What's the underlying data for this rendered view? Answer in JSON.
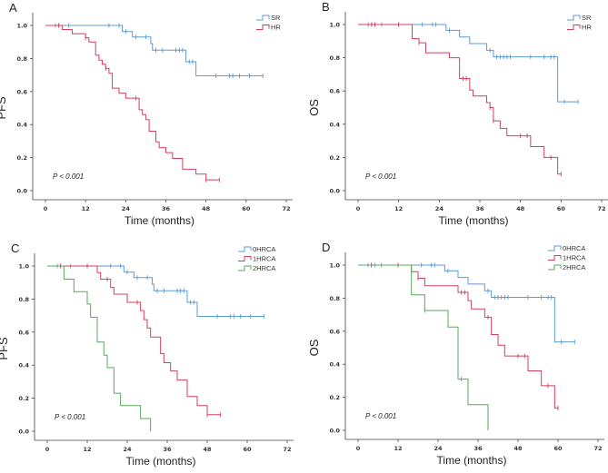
{
  "chart_data": [
    {
      "type": "line",
      "panel": "A",
      "ylabel": "PFS",
      "xlabel": "Time (months)",
      "pvalue": "P < 0.001",
      "xticks": [
        "0",
        "12",
        "24",
        "36",
        "48",
        "60",
        "72"
      ],
      "yticks": [
        "0.0",
        "0.2",
        "0.4",
        "0.6",
        "0.8",
        "1.0"
      ],
      "xlim": [
        0,
        72
      ],
      "ylim": [
        0,
        1
      ],
      "legend_position": "top-right",
      "series": [
        {
          "name": "SR",
          "color": "#5b9bd5",
          "steps": [
            [
              0,
              1
            ],
            [
              23,
              0.963
            ],
            [
              26,
              0.93
            ],
            [
              31.5,
              0.89
            ],
            [
              32,
              0.85
            ],
            [
              42,
              0.78
            ],
            [
              45,
              0.695
            ]
          ],
          "end": 65,
          "censors": [
            3,
            4,
            7,
            19,
            22,
            24,
            27,
            30,
            33,
            35,
            39,
            40,
            41,
            43,
            44,
            51,
            55,
            56,
            58,
            61,
            65
          ]
        },
        {
          "name": "HR",
          "color": "#d0405f",
          "steps": [
            [
              0,
              1
            ],
            [
              5,
              0.975
            ],
            [
              8,
              0.95
            ],
            [
              12,
              0.925
            ],
            [
              13,
              0.9
            ],
            [
              15,
              0.82
            ],
            [
              16,
              0.79
            ],
            [
              17,
              0.765
            ],
            [
              18,
              0.74
            ],
            [
              19,
              0.71
            ],
            [
              20,
              0.62
            ],
            [
              22,
              0.59
            ],
            [
              24,
              0.56
            ],
            [
              28,
              0.49
            ],
            [
              29,
              0.46
            ],
            [
              30,
              0.43
            ],
            [
              31,
              0.36
            ],
            [
              33,
              0.295
            ],
            [
              34,
              0.26
            ],
            [
              36,
              0.23
            ],
            [
              38,
              0.195
            ],
            [
              41,
              0.13
            ],
            [
              45,
              0.1
            ],
            [
              48,
              0.065
            ]
          ],
          "end": 52,
          "censors": [
            4,
            12,
            18,
            27,
            48,
            52
          ]
        }
      ]
    },
    {
      "type": "line",
      "panel": "B",
      "ylabel": "OS",
      "xlabel": "Time (months)",
      "pvalue": "P < 0.001",
      "xticks": [
        "0",
        "12",
        "24",
        "36",
        "48",
        "60",
        "72"
      ],
      "yticks": [
        "0.0",
        "0.2",
        "0.4",
        "0.6",
        "0.8",
        "1.0"
      ],
      "xlim": [
        0,
        72
      ],
      "ylim": [
        0,
        1
      ],
      "legend_position": "top-right",
      "series": [
        {
          "name": "SR",
          "color": "#5b9bd5",
          "steps": [
            [
              0,
              1
            ],
            [
              26,
              0.965
            ],
            [
              30,
              0.925
            ],
            [
              33,
              0.885
            ],
            [
              38,
              0.845
            ],
            [
              40,
              0.805
            ],
            [
              59,
              0.535
            ]
          ],
          "end": 65,
          "censors": [
            3,
            4,
            5,
            7,
            12,
            19,
            22,
            23,
            27,
            39,
            41,
            42,
            43,
            44,
            45,
            51,
            55,
            57,
            58,
            61,
            65
          ]
        },
        {
          "name": "HR",
          "color": "#d0405f",
          "steps": [
            [
              0,
              1
            ],
            [
              16,
              0.915
            ],
            [
              18,
              0.89
            ],
            [
              20,
              0.83
            ],
            [
              27,
              0.8
            ],
            [
              30,
              0.675
            ],
            [
              33,
              0.605
            ],
            [
              34,
              0.57
            ],
            [
              38,
              0.53
            ],
            [
              39,
              0.5
            ],
            [
              40,
              0.42
            ],
            [
              42,
              0.375
            ],
            [
              44,
              0.33
            ],
            [
              51,
              0.265
            ],
            [
              55,
              0.2
            ],
            [
              59,
              0.1
            ]
          ],
          "end": 60,
          "censors": [
            4,
            5,
            12,
            18,
            31,
            32,
            39,
            40,
            48,
            50,
            57,
            60
          ]
        }
      ]
    },
    {
      "type": "line",
      "panel": "C",
      "ylabel": "PFS",
      "xlabel": "Time (months)",
      "pvalue": "P < 0.001",
      "xticks": [
        "0",
        "12",
        "24",
        "36",
        "48",
        "60",
        "72"
      ],
      "yticks": [
        "0.0",
        "0.2",
        "0.4",
        "0.6",
        "0.8",
        "1.0"
      ],
      "xlim": [
        0,
        72
      ],
      "ylim": [
        0,
        1
      ],
      "legend_position": "top-right",
      "series": [
        {
          "name": "0HRCA",
          "color": "#5b9bd5",
          "steps": [
            [
              0,
              1
            ],
            [
              23,
              0.963
            ],
            [
              26,
              0.93
            ],
            [
              31.5,
              0.89
            ],
            [
              32,
              0.85
            ],
            [
              42,
              0.78
            ],
            [
              45,
              0.695
            ]
          ],
          "end": 65,
          "censors": [
            3,
            4,
            7,
            19,
            22,
            24,
            27,
            30,
            33,
            35,
            39,
            40,
            41,
            43,
            44,
            51,
            55,
            56,
            58,
            61,
            65
          ]
        },
        {
          "name": "1HRCA",
          "color": "#d0405f",
          "steps": [
            [
              0,
              1
            ],
            [
              15,
              0.96
            ],
            [
              16,
              0.92
            ],
            [
              19,
              0.87
            ],
            [
              20,
              0.83
            ],
            [
              24,
              0.78
            ],
            [
              28,
              0.73
            ],
            [
              29,
              0.675
            ],
            [
              30,
              0.625
            ],
            [
              31,
              0.57
            ],
            [
              34,
              0.47
            ],
            [
              35,
              0.415
            ],
            [
              37,
              0.365
            ],
            [
              39,
              0.31
            ],
            [
              42,
              0.21
            ],
            [
              45,
              0.155
            ],
            [
              48,
              0.1
            ]
          ],
          "end": 52,
          "censors": [
            4,
            12,
            18,
            27,
            48,
            52
          ]
        },
        {
          "name": "2HRCA",
          "color": "#5aaa5a",
          "steps": [
            [
              0,
              1
            ],
            [
              5,
              0.92
            ],
            [
              8,
              0.845
            ],
            [
              12,
              0.77
            ],
            [
              13,
              0.69
            ],
            [
              15,
              0.54
            ],
            [
              17,
              0.46
            ],
            [
              18,
              0.385
            ],
            [
              20,
              0.23
            ],
            [
              22,
              0.155
            ],
            [
              28,
              0.077
            ],
            [
              31,
              0
            ]
          ],
          "end": 31,
          "censors": []
        }
      ]
    },
    {
      "type": "line",
      "panel": "D",
      "ylabel": "OS",
      "xlabel": "Time (months)",
      "pvalue": "P < 0.001",
      "xticks": [
        "0",
        "12",
        "24",
        "36",
        "48",
        "60",
        "72"
      ],
      "yticks": [
        "0.0",
        "0.2",
        "0.4",
        "0.6",
        "0.8",
        "1.0"
      ],
      "xlim": [
        0,
        72
      ],
      "ylim": [
        0,
        1
      ],
      "legend_position": "top-right",
      "series": [
        {
          "name": "0HRCA",
          "color": "#5b9bd5",
          "steps": [
            [
              0,
              1
            ],
            [
              26,
              0.965
            ],
            [
              30,
              0.925
            ],
            [
              33,
              0.885
            ],
            [
              38,
              0.845
            ],
            [
              40,
              0.805
            ],
            [
              59,
              0.535
            ]
          ],
          "end": 65,
          "censors": [
            3,
            4,
            5,
            7,
            12,
            19,
            22,
            23,
            27,
            39,
            41,
            42,
            43,
            44,
            45,
            51,
            55,
            57,
            58,
            61,
            65
          ]
        },
        {
          "name": "1HRCA",
          "color": "#d0405f",
          "steps": [
            [
              0,
              1
            ],
            [
              16,
              0.96
            ],
            [
              18,
              0.92
            ],
            [
              20,
              0.875
            ],
            [
              30,
              0.835
            ],
            [
              33,
              0.785
            ],
            [
              34,
              0.735
            ],
            [
              38,
              0.685
            ],
            [
              40,
              0.58
            ],
            [
              42,
              0.515
            ],
            [
              44,
              0.45
            ],
            [
              51,
              0.36
            ],
            [
              55,
              0.27
            ],
            [
              59,
              0.135
            ]
          ],
          "end": 60,
          "censors": [
            4,
            12,
            18,
            31,
            32,
            39,
            48,
            50,
            57,
            60
          ]
        },
        {
          "name": "2HRCA",
          "color": "#5aaa5a",
          "steps": [
            [
              0,
              1
            ],
            [
              16,
              0.82
            ],
            [
              20,
              0.725
            ],
            [
              27,
              0.625
            ],
            [
              30,
              0.31
            ],
            [
              33,
              0.155
            ],
            [
              39,
              0
            ]
          ],
          "end": 39,
          "censors": [
            20,
            31
          ]
        }
      ]
    }
  ]
}
